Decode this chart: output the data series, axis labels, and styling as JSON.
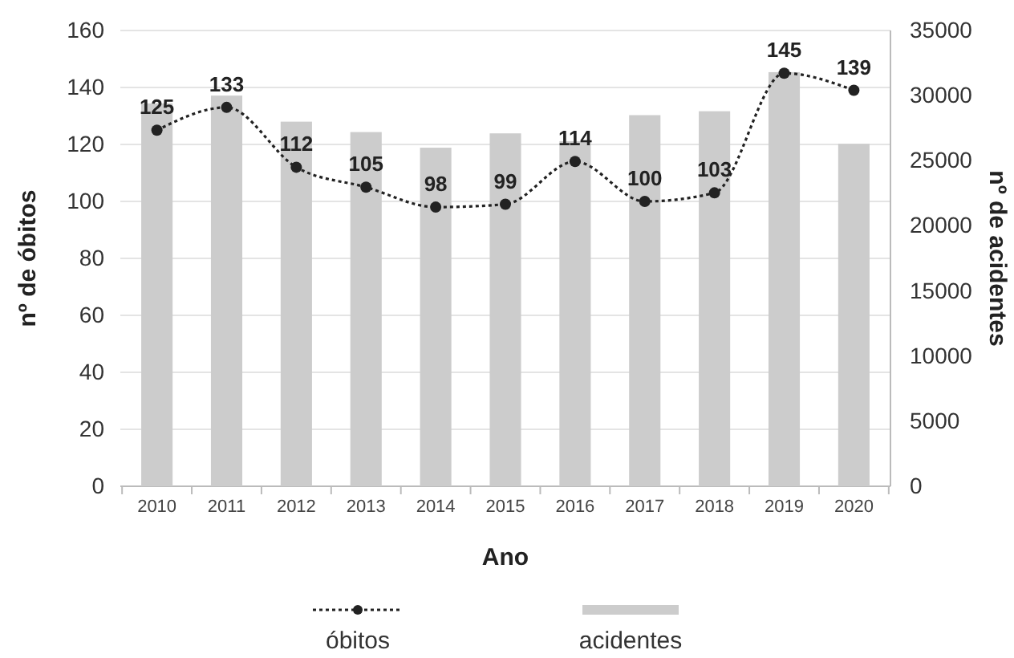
{
  "chart_data": {
    "type": "bar",
    "xlabel": "Ano",
    "ylabel": "nº de óbitos",
    "y2label": "nº de acidentes",
    "categories": [
      "2010",
      "2011",
      "2012",
      "2013",
      "2014",
      "2015",
      "2016",
      "2017",
      "2018",
      "2019",
      "2020"
    ],
    "series": [
      {
        "name": "óbitos",
        "type": "line",
        "color": "#222222",
        "marker": "circle",
        "line_style": "dotted",
        "data_labels": true,
        "values": [
          125,
          133,
          112,
          105,
          98,
          99,
          114,
          100,
          103,
          145,
          139
        ]
      },
      {
        "name": "acidentes",
        "axis": "y2",
        "color": "#cccccc",
        "values": [
          29400,
          30000,
          28000,
          27200,
          26000,
          27100,
          26500,
          28500,
          28800,
          31800,
          26300
        ]
      }
    ],
    "ylim": [
      0,
      160
    ],
    "yticks": [
      0,
      20,
      40,
      60,
      80,
      100,
      120,
      140,
      160
    ],
    "y2lim": [
      0,
      35000
    ],
    "y2ticks": [
      0,
      5000,
      10000,
      15000,
      20000,
      25000,
      30000,
      35000
    ],
    "grid": "y",
    "legend": "bottom"
  }
}
